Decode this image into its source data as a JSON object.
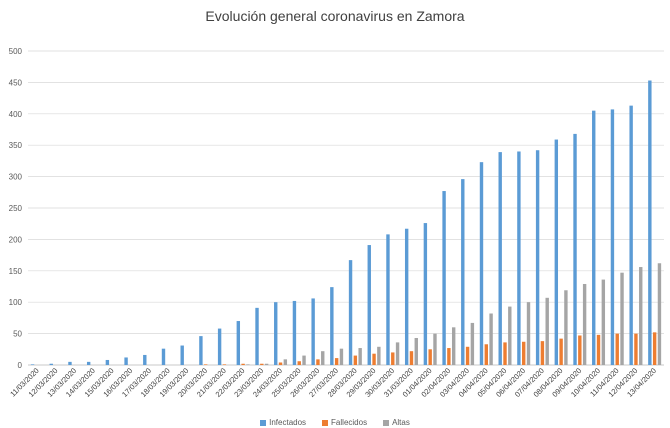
{
  "chart_data": {
    "type": "bar",
    "title": "Evolución general coronavirus en Zamora",
    "xlabel": "",
    "ylabel": "",
    "ylim": [
      0,
      500
    ],
    "yticks": [
      0,
      50,
      100,
      150,
      200,
      250,
      300,
      350,
      400,
      450,
      500
    ],
    "grid": true,
    "legend_position": "bottom",
    "categories": [
      "11/03/2020",
      "12/03/2020",
      "13/03/2020",
      "14/03/2020",
      "15/03/2020",
      "16/03/2020",
      "17/03/2020",
      "18/03/2020",
      "19/03/2020",
      "20/03/2020",
      "21/03/2020",
      "22/03/2020",
      "23/03/2020",
      "24/03/2020",
      "25/03/2020",
      "26/03/2020",
      "27/03/2020",
      "28/03/2020",
      "29/03/2020",
      "30/03/2020",
      "31/03/2020",
      "01/04/2020",
      "02/04/2020",
      "03/04/2020",
      "04/04/2020",
      "05/04/2020",
      "06/04/2020",
      "07/04/2020",
      "08/04/2020",
      "09/04/2020",
      "10/04/2020",
      "11/04/2020",
      "12/04/2020",
      "13/04/2020"
    ],
    "series": [
      {
        "name": "Infectados",
        "color": "#5B9BD5",
        "values": [
          1,
          2,
          5,
          5,
          8,
          12,
          16,
          26,
          31,
          46,
          58,
          70,
          91,
          100,
          102,
          106,
          124,
          167,
          191,
          208,
          217,
          226,
          277,
          296,
          323,
          339,
          340,
          342,
          359,
          368,
          405,
          407,
          413,
          453
        ]
      },
      {
        "name": "Fallecidos",
        "color": "#ED7D31",
        "values": [
          0,
          0,
          0,
          0,
          0,
          0,
          0,
          0,
          0,
          1,
          1,
          2,
          2,
          4,
          6,
          9,
          11,
          15,
          18,
          20,
          22,
          25,
          27,
          29,
          33,
          36,
          37,
          38,
          42,
          47,
          48,
          50,
          50,
          52
        ]
      },
      {
        "name": "Altas",
        "color": "#A5A5A5",
        "values": [
          0,
          0,
          0,
          0,
          0,
          0,
          0,
          0,
          0,
          0,
          0,
          1,
          2,
          9,
          15,
          22,
          26,
          27,
          29,
          36,
          43,
          50,
          60,
          67,
          82,
          93,
          100,
          107,
          119,
          129,
          136,
          147,
          156,
          162
        ]
      }
    ]
  }
}
